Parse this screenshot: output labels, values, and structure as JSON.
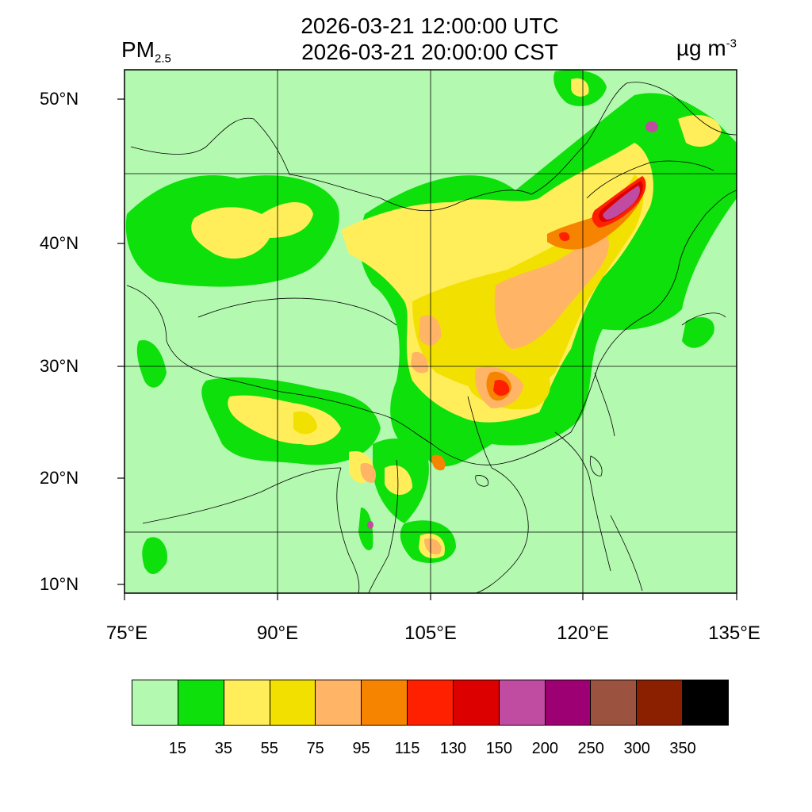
{
  "header": {
    "time_utc": "2026-03-21 12:00:00 UTC",
    "time_cst": "2026-03-21 20:00:00 CST",
    "variable": "PM",
    "variable_sub": "2.5",
    "unit": "µg m",
    "unit_sup": "-3"
  },
  "axes": {
    "lat_labels": [
      "50°N",
      "40°N",
      "30°N",
      "20°N",
      "10°N"
    ],
    "lon_labels": [
      "75°E",
      "90°E",
      "105°E",
      "120°E",
      "135°E"
    ],
    "lat_values": [
      50,
      40,
      30,
      20,
      10
    ],
    "lon_values": [
      75,
      90,
      105,
      120,
      135
    ],
    "lon_range": [
      75,
      135
    ],
    "grid": true
  },
  "colorbar": {
    "colors": [
      "#b4f9b0",
      "#0ee00c",
      "#ffee5a",
      "#f2e000",
      "#ffb466",
      "#f78400",
      "#ff2000",
      "#dd0000",
      "#bf4ca0",
      "#9c0072",
      "#9b523e",
      "#8a2000",
      "#000000"
    ],
    "labels": [
      "15",
      "35",
      "55",
      "75",
      "95",
      "115",
      "130",
      "150",
      "200",
      "250",
      "300",
      "350"
    ]
  }
}
